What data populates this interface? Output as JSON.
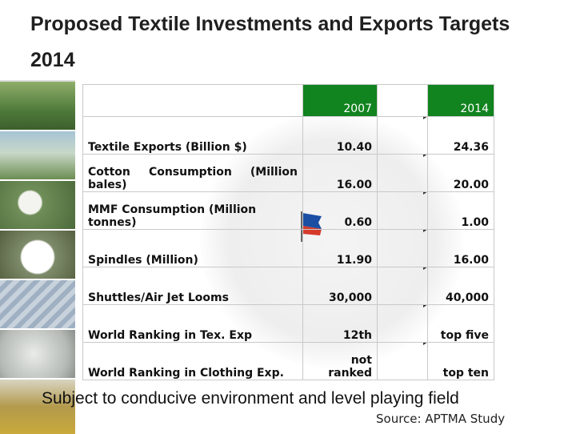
{
  "slide": {
    "title": "Proposed Textile Investments and Exports Targets 2014",
    "caption": "Subject to conducive environment and level playing field",
    "source": "Source: APTMA Study"
  },
  "table": {
    "header": {
      "year_1": "2007",
      "year_2": "2014"
    },
    "rows": [
      {
        "label": "Textile Exports (Billion $)",
        "v2007": "10.40",
        "v2014": "24.36"
      },
      {
        "label_parts": [
          "Cotton",
          "Consumption",
          "(Million"
        ],
        "label_line2": "bales)",
        "v2007": "16.00",
        "v2014": "20.00"
      },
      {
        "label": "MMF Consumption (Million tonnes)",
        "v2007": "0.60",
        "v2014": "1.00"
      },
      {
        "label": "Spindles (Million)",
        "v2007": "11.90",
        "v2014": "16.00"
      },
      {
        "label": "Shuttles/Air Jet Looms",
        "v2007": "30,000",
        "v2014": "40,000"
      },
      {
        "label": "World Ranking in Tex. Exp",
        "v2007": "12th",
        "v2014": "top five"
      },
      {
        "label": "World Ranking in Clothing Exp.",
        "v2007": "not ranked",
        "v2014": "top ten"
      }
    ]
  },
  "colors": {
    "header_green": "#11831f",
    "grid_line": "#c9c9c9"
  },
  "icons": [
    "cotton-field-photo",
    "crop-duster-photo",
    "cotton-plant-photo",
    "cotton-boll-photo",
    "yarn-photo",
    "cotton-bale-photo",
    "gold-bar-photo",
    "flag-icon",
    "arrow-right-icon"
  ]
}
